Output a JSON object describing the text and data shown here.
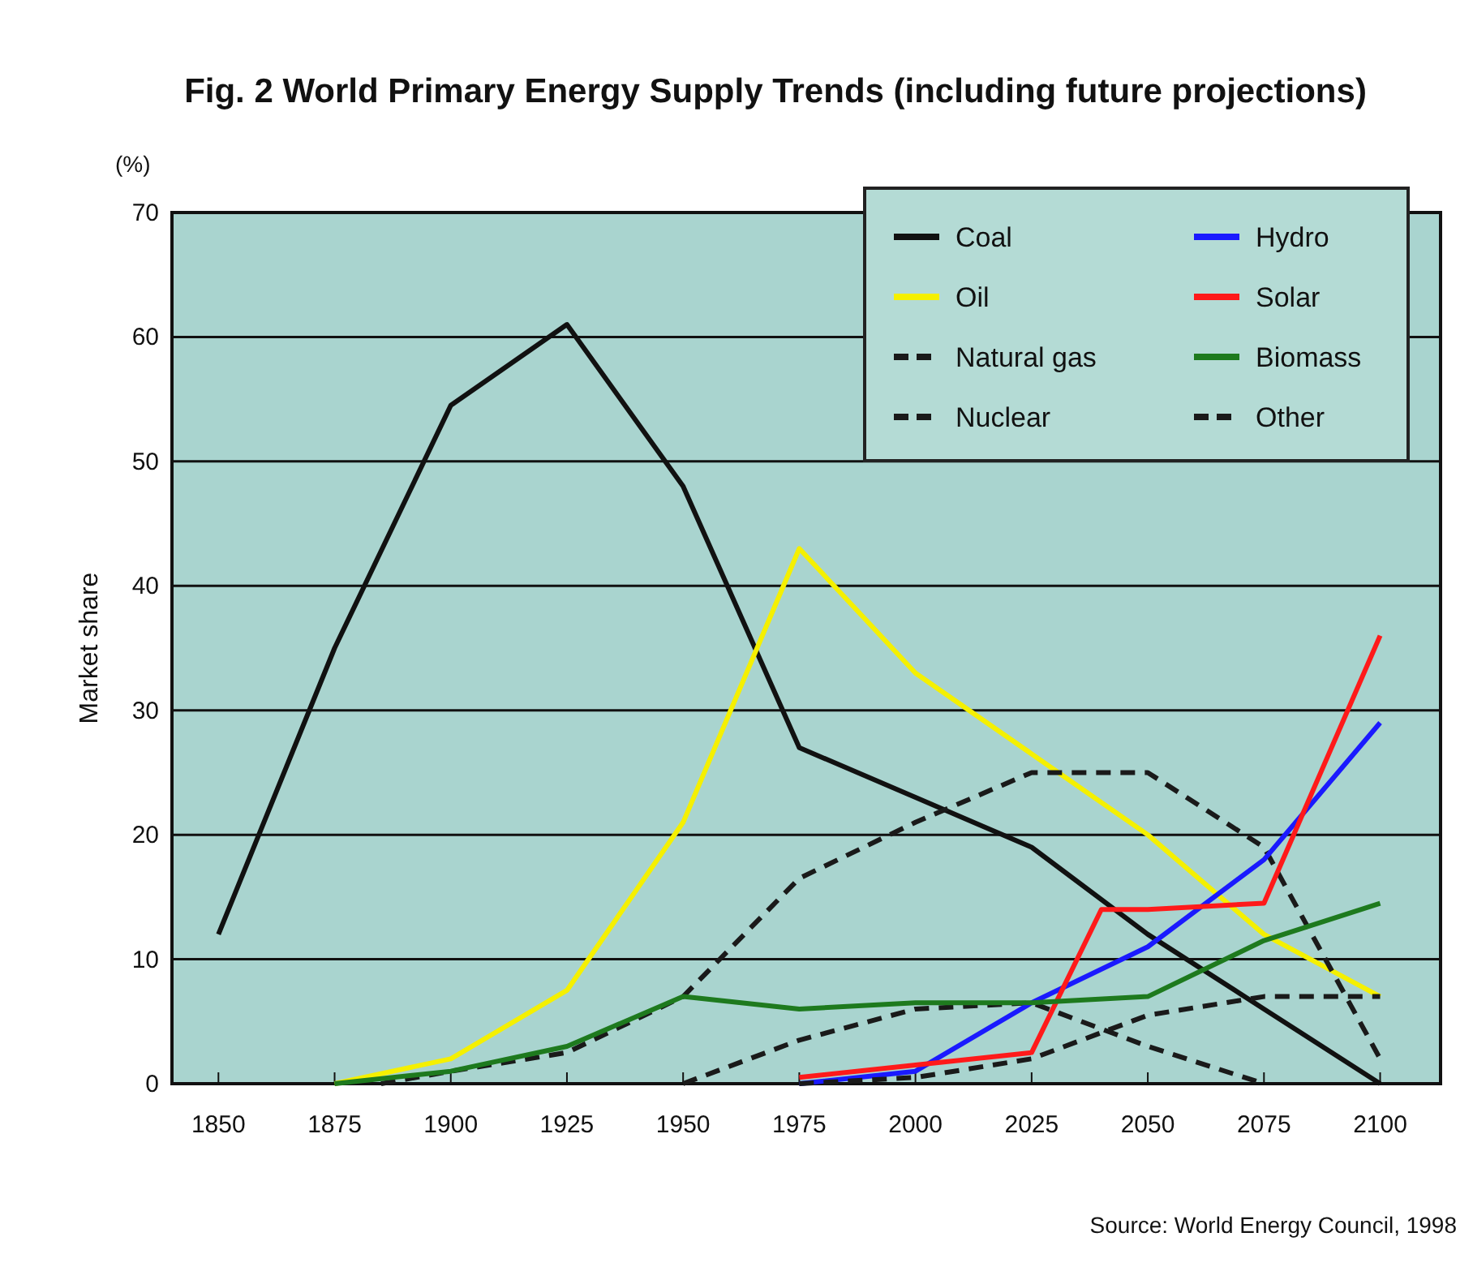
{
  "chart_data": {
    "type": "line",
    "title": "Fig. 2  World Primary Energy Supply Trends (including future projections)",
    "ylabel": "Market share",
    "annotations": [
      "(%)",
      "Source: World Energy Council, 1998"
    ],
    "xlim": [
      1840,
      2113
    ],
    "xticks": [
      1850,
      1875,
      1900,
      1925,
      1950,
      1975,
      2000,
      2025,
      2050,
      2075,
      2100
    ],
    "ylim": [
      0,
      70
    ],
    "yticks": [
      0,
      10,
      20,
      30,
      40,
      50,
      60,
      70
    ],
    "grid": "y",
    "legend": "top right",
    "series": [
      {
        "name": "Coal",
        "color": "#111111",
        "line_style": "solid",
        "x": [
          1850,
          1875,
          1900,
          1925,
          1950,
          1975,
          2000,
          2025,
          2050,
          2075,
          2100
        ],
        "values": [
          12,
          35,
          54.5,
          61,
          48,
          27,
          23,
          19,
          12,
          6,
          0
        ]
      },
      {
        "name": "Oil",
        "color": "#f5f000",
        "line_style": "solid",
        "x": [
          1875,
          1900,
          1925,
          1950,
          1975,
          2000,
          2025,
          2050,
          2075,
          2100
        ],
        "values": [
          0,
          2,
          7.5,
          21,
          43,
          33,
          26.5,
          20,
          12,
          7
        ]
      },
      {
        "name": "Natural gas",
        "color": "#1a1a1a",
        "line_style": "dashed",
        "x": [
          1885,
          1900,
          1925,
          1950,
          1975,
          2000,
          2025,
          2050,
          2075,
          2100
        ],
        "values": [
          0,
          1,
          2.5,
          7,
          16.5,
          21,
          25,
          25,
          19,
          2
        ]
      },
      {
        "name": "Nuclear",
        "color": "#1a1a1a",
        "line_style": "dashed",
        "x": [
          1950,
          1975,
          2000,
          2025,
          2050,
          2075
        ],
        "values": [
          0,
          3.5,
          6,
          6.5,
          3,
          0
        ]
      },
      {
        "name": "Hydro",
        "color": "#1a1aff",
        "line_style": "solid",
        "x": [
          1975,
          2000,
          2025,
          2050,
          2075,
          2100
        ],
        "values": [
          0,
          1,
          6.5,
          11,
          18,
          29
        ]
      },
      {
        "name": "Solar",
        "color": "#ff1a1a",
        "line_style": "solid",
        "x": [
          1975,
          2000,
          2025,
          2040,
          2050,
          2075,
          2100
        ],
        "values": [
          0.5,
          1.5,
          2.5,
          14,
          14,
          14.5,
          36
        ]
      },
      {
        "name": "Biomass",
        "color": "#1e7a1e",
        "line_style": "solid",
        "x": [
          1875,
          1900,
          1925,
          1950,
          1975,
          2000,
          2025,
          2050,
          2075,
          2100
        ],
        "values": [
          0,
          1,
          3,
          7,
          6,
          6.5,
          6.5,
          7,
          11.5,
          14.5
        ]
      },
      {
        "name": "Other",
        "color": "#1a1a1a",
        "line_style": "dashed",
        "x": [
          1975,
          2000,
          2025,
          2050,
          2075,
          2100
        ],
        "values": [
          0,
          0.5,
          2,
          5.5,
          7,
          7
        ]
      }
    ]
  }
}
